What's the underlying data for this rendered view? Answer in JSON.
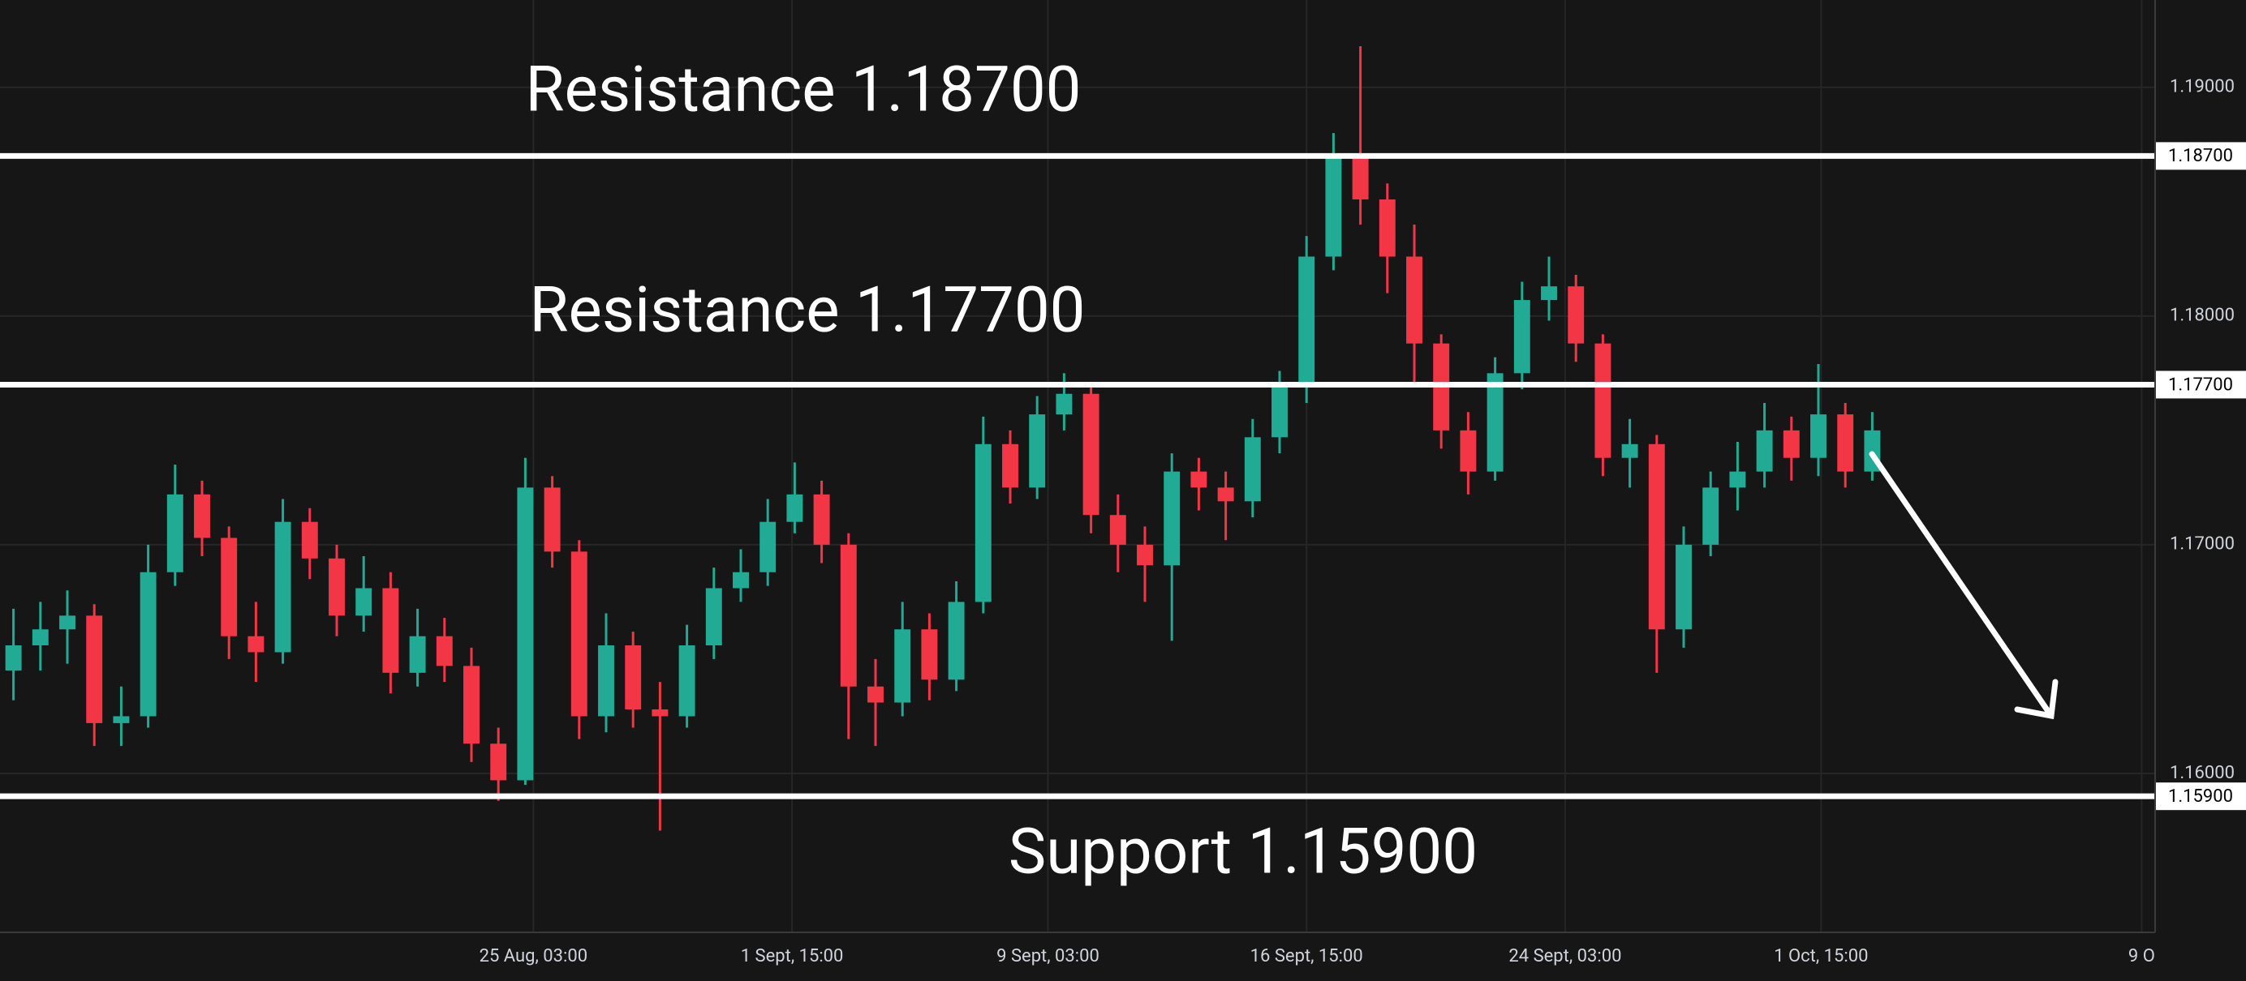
{
  "chart_data": {
    "type": "candlestick",
    "categories": [
      null,
      null,
      null,
      null,
      null,
      null,
      null,
      null,
      null,
      null,
      null,
      null,
      null,
      null,
      null,
      null,
      null,
      null,
      null,
      null,
      null,
      null,
      null,
      null,
      null,
      null,
      null,
      null,
      null,
      null,
      null,
      null,
      null,
      null,
      null,
      null,
      null,
      null,
      null,
      null,
      null,
      null,
      null,
      null,
      null,
      null,
      null,
      null,
      null,
      null,
      null,
      null,
      null,
      null,
      null,
      null,
      null,
      null,
      null,
      null,
      null,
      null,
      null,
      null,
      null,
      null,
      null,
      null,
      null,
      null
    ],
    "open": [
      1.1645,
      1.1656,
      1.1663,
      1.1669,
      1.1622,
      1.1625,
      1.1688,
      1.1722,
      1.1703,
      1.166,
      1.1653,
      1.171,
      1.1694,
      1.1669,
      1.1681,
      1.1644,
      1.166,
      1.1647,
      1.1613,
      1.1597,
      1.1725,
      1.1697,
      1.1625,
      1.1656,
      1.1628,
      1.1625,
      1.1656,
      1.1681,
      1.1688,
      1.171,
      1.1722,
      1.17,
      1.1638,
      1.1631,
      1.1663,
      1.1641,
      1.1675,
      1.1744,
      1.1725,
      1.1757,
      1.1766,
      1.1713,
      1.17,
      1.1691,
      1.1732,
      1.1725,
      1.1719,
      1.1747,
      1.1769,
      1.1826,
      1.1869,
      1.1851,
      1.1826,
      1.1788,
      1.175,
      1.1732,
      1.1775,
      1.1807,
      1.1813,
      1.1788,
      1.1738,
      1.1744,
      1.1663,
      1.17,
      1.1725,
      1.1732,
      1.175,
      1.1738,
      1.1757,
      1.1732
    ],
    "high": [
      1.1672,
      1.1675,
      1.168,
      1.1674,
      1.1638,
      1.17,
      1.1735,
      1.1728,
      1.1708,
      1.1675,
      1.172,
      1.1716,
      1.17,
      1.1695,
      1.1688,
      1.1672,
      1.1668,
      1.1655,
      1.162,
      1.1738,
      1.173,
      1.1702,
      1.167,
      1.1662,
      1.164,
      1.1665,
      1.169,
      1.1698,
      1.172,
      1.1736,
      1.1728,
      1.1705,
      1.165,
      1.1675,
      1.167,
      1.1684,
      1.1756,
      1.175,
      1.1765,
      1.1775,
      1.177,
      1.1722,
      1.1708,
      1.174,
      1.1738,
      1.1732,
      1.1755,
      1.1776,
      1.1835,
      1.188,
      1.1918,
      1.1858,
      1.184,
      1.1792,
      1.1758,
      1.1782,
      1.1815,
      1.1826,
      1.1818,
      1.1792,
      1.1755,
      1.1748,
      1.1708,
      1.1732,
      1.1745,
      1.1762,
      1.1756,
      1.1779,
      1.1762,
      1.1758
    ],
    "low": [
      1.1632,
      1.1645,
      1.1648,
      1.1612,
      1.1612,
      1.162,
      1.1682,
      1.1695,
      1.165,
      1.164,
      1.1648,
      1.1685,
      1.166,
      1.1662,
      1.1635,
      1.1638,
      1.164,
      1.1605,
      1.1588,
      1.1595,
      1.169,
      1.1615,
      1.1618,
      1.162,
      1.1575,
      1.162,
      1.165,
      1.1675,
      1.1682,
      1.1705,
      1.1692,
      1.1615,
      1.1612,
      1.1625,
      1.1632,
      1.1636,
      1.167,
      1.1718,
      1.172,
      1.175,
      1.1705,
      1.1688,
      1.1675,
      1.1658,
      1.1715,
      1.1702,
      1.1712,
      1.174,
      1.1762,
      1.182,
      1.184,
      1.181,
      1.177,
      1.1742,
      1.1722,
      1.1728,
      1.1768,
      1.1798,
      1.178,
      1.173,
      1.1725,
      1.1644,
      1.1655,
      1.1695,
      1.1715,
      1.1725,
      1.1728,
      1.173,
      1.1725,
      1.1728
    ],
    "close": [
      1.1656,
      1.1663,
      1.1669,
      1.1622,
      1.1625,
      1.1688,
      1.1722,
      1.1703,
      1.166,
      1.1653,
      1.171,
      1.1694,
      1.1669,
      1.1681,
      1.1644,
      1.166,
      1.1647,
      1.1613,
      1.1597,
      1.1725,
      1.1697,
      1.1625,
      1.1656,
      1.1628,
      1.1625,
      1.1656,
      1.1681,
      1.1688,
      1.171,
      1.1722,
      1.17,
      1.1638,
      1.1631,
      1.1663,
      1.1641,
      1.1675,
      1.1744,
      1.1725,
      1.1757,
      1.1766,
      1.1713,
      1.17,
      1.1691,
      1.1732,
      1.1725,
      1.1719,
      1.1747,
      1.1769,
      1.1826,
      1.1869,
      1.1851,
      1.1826,
      1.1788,
      1.175,
      1.1732,
      1.1775,
      1.1807,
      1.1813,
      1.1788,
      1.1738,
      1.1744,
      1.1663,
      1.17,
      1.1725,
      1.1732,
      1.175,
      1.1738,
      1.1757,
      1.1732,
      1.175
    ],
    "up_color": "#22ab94",
    "down_color": "#f23645",
    "xlim": [
      0,
      80
    ],
    "xticks": [
      {
        "value": 19.8,
        "label": "25 Aug, 03:00"
      },
      {
        "value": 29.4,
        "label": "1 Sept, 15:00"
      },
      {
        "value": 38.9,
        "label": "9 Sept, 03:00"
      },
      {
        "value": 48.5,
        "label": "16 Sept, 15:00"
      },
      {
        "value": 58.1,
        "label": "24 Sept, 03:00"
      },
      {
        "value": 67.6,
        "label": "1 Oct, 15:00"
      },
      {
        "value": 79.5,
        "label": "9 O"
      }
    ],
    "ylim": [
      1.15305,
      1.19382
    ],
    "yticks": [
      {
        "value": 1.16,
        "label": "1.16000"
      },
      {
        "value": 1.17,
        "label": "1.17000"
      },
      {
        "value": 1.18,
        "label": "1.18000"
      },
      {
        "value": 1.19,
        "label": "1.19000"
      }
    ],
    "grid": true,
    "levels": [
      {
        "value": 1.187,
        "label": "1.18700",
        "text": "Resistance 1.18700"
      },
      {
        "value": 1.177,
        "label": "1.17700",
        "text": "Resistance 1.17700"
      },
      {
        "value": 1.159,
        "label": "1.15900",
        "text": "Support 1.15900"
      }
    ]
  }
}
